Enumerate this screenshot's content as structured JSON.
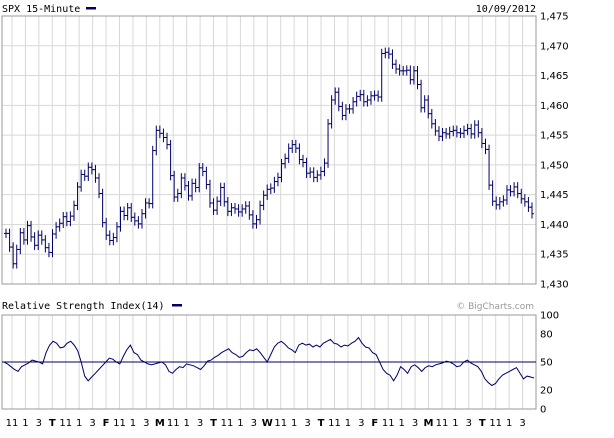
{
  "chart_data": [
    {
      "type": "ohlc",
      "title": "SPX 15-Minute",
      "date": "10/09/2012",
      "colors": {
        "bars": "#000066",
        "grid": "#d8d8d8",
        "frame": "#999999"
      },
      "ylim": [
        1430,
        1475
      ],
      "yticks": [
        "1,475",
        "1,470",
        "1,465",
        "1,460",
        "1,455",
        "1,450",
        "1,445",
        "1,440",
        "1,435",
        "1,430"
      ],
      "close": [
        1438.5,
        1436.2,
        1433.4,
        1435.8,
        1438.6,
        1437.4,
        1439.8,
        1437.9,
        1436.5,
        1438.2,
        1437.4,
        1436.1,
        1435.3,
        1438.4,
        1439.6,
        1440.2,
        1441.3,
        1440.5,
        1441.4,
        1443.2,
        1446.3,
        1448.4,
        1448.1,
        1449.6,
        1449.2,
        1447.8,
        1445.2,
        1440.3,
        1438.2,
        1437.3,
        1437.8,
        1439.6,
        1442.2,
        1441.5,
        1442.8,
        1441.2,
        1440.6,
        1440.1,
        1441.8,
        1443.6,
        1443.5,
        1452.4,
        1455.8,
        1455.3,
        1454.6,
        1453.4,
        1448.2,
        1444.6,
        1445.2,
        1447.8,
        1446.5,
        1444.8,
        1446.9,
        1446.2,
        1449.5,
        1448.9,
        1446.7,
        1443.6,
        1442.4,
        1443.9,
        1446.2,
        1443.8,
        1442.2,
        1442.8,
        1442.6,
        1442.1,
        1442.6,
        1443.1,
        1441.6,
        1440.1,
        1440.8,
        1443.2,
        1444.9,
        1445.9,
        1446.1,
        1447.2,
        1447.9,
        1450.2,
        1451.1,
        1452.8,
        1453.4,
        1452.8,
        1450.9,
        1450.4,
        1448.6,
        1448.8,
        1447.9,
        1448.3,
        1448.9,
        1450.3,
        1456.9,
        1460.9,
        1462.2,
        1459.8,
        1458.3,
        1459.4,
        1459.4,
        1460.6,
        1461.5,
        1461.8,
        1460.6,
        1460.9,
        1461.6,
        1461.7,
        1461.4,
        1468.7,
        1468.9,
        1468.6,
        1466.9,
        1466.1,
        1465.8,
        1465.8,
        1465.9,
        1464.3,
        1465.8,
        1463.5,
        1459.6,
        1460.9,
        1458.6,
        1456.9,
        1455.7,
        1454.8,
        1455.4,
        1455.2,
        1455.6,
        1455.8,
        1455.4,
        1455.3,
        1455.8,
        1456.1,
        1455.2,
        1456.7,
        1455.4,
        1453.6,
        1452.6,
        1446.6,
        1443.9,
        1443.3,
        1443.8,
        1444.1,
        1445.8,
        1445.5,
        1446.3,
        1445.2,
        1444.3,
        1443.8,
        1442.9,
        1441.8
      ],
      "ylabel_panel": "",
      "xlabels": [
        "11",
        "1",
        "3",
        "T",
        "11",
        "1",
        "3",
        "F",
        "11",
        "1",
        "3",
        "M",
        "11",
        "1",
        "3",
        "T",
        "11",
        "1",
        "3",
        "W",
        "11",
        "1",
        "3",
        "T",
        "11",
        "1",
        "3",
        "F",
        "11",
        "1",
        "3",
        "M",
        "11",
        "1",
        "3",
        "T",
        "11",
        "1",
        "3"
      ]
    },
    {
      "type": "line",
      "title": "Relative Strength Index(14)",
      "credit": "© BigCharts.com",
      "ylim": [
        0,
        100
      ],
      "yticks": [
        "100",
        "80",
        "50",
        "20",
        "0"
      ],
      "reference": 50,
      "values": [
        50,
        48,
        45,
        42,
        40,
        45,
        47,
        49,
        52,
        51,
        50,
        48,
        60,
        68,
        72,
        70,
        65,
        66,
        70,
        72,
        68,
        62,
        50,
        35,
        30,
        34,
        38,
        42,
        46,
        50,
        54,
        53,
        50,
        48,
        56,
        63,
        68,
        60,
        58,
        52,
        50,
        48,
        47,
        48,
        49,
        50,
        47,
        40,
        38,
        42,
        45,
        44,
        48,
        47,
        46,
        44,
        42,
        46,
        51,
        52,
        55,
        57,
        60,
        62,
        64,
        60,
        58,
        55,
        56,
        60,
        63,
        62,
        64,
        60,
        55,
        50,
        58,
        66,
        70,
        72,
        69,
        65,
        63,
        60,
        68,
        70,
        68,
        69,
        66,
        68,
        66,
        70,
        72,
        74,
        70,
        69,
        66,
        68,
        67,
        70,
        72,
        76,
        70,
        66,
        65,
        60,
        58,
        50,
        42,
        38,
        36,
        30,
        36,
        45,
        42,
        38,
        45,
        47,
        44,
        40,
        44,
        46,
        45,
        47,
        48,
        49,
        51,
        50,
        48,
        45,
        46,
        50,
        52,
        49,
        47,
        45,
        40,
        32,
        28,
        25,
        27,
        32,
        36,
        38,
        40,
        42,
        44,
        38,
        32,
        35,
        34,
        33
      ]
    }
  ]
}
